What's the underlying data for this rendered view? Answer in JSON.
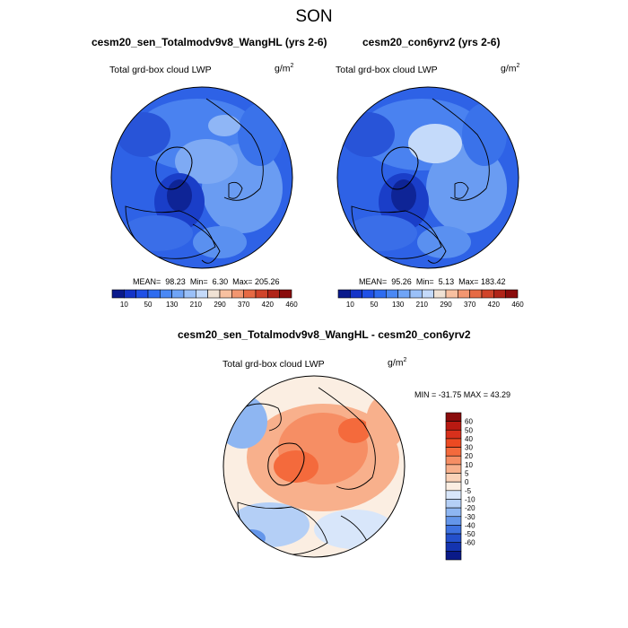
{
  "figure": {
    "season": "SON"
  },
  "panels": [
    {
      "title": "cesm20_sen_Totalmodv9v8_WangHL (yrs 2-6)",
      "variable": "Total grd-box cloud LWP",
      "units": "g/m",
      "units_sup": "2",
      "mean_label": "MEAN=",
      "mean": "98.23",
      "min_label": "Min=",
      "min": "6.30",
      "max_label": "Max=",
      "max": "205.26"
    },
    {
      "title": "cesm20_con6yrv2 (yrs 2-6)",
      "variable": "Total grd-box cloud LWP",
      "units": "g/m",
      "units_sup": "2",
      "mean_label": "MEAN=",
      "mean": "95.26",
      "min_label": "Min=",
      "min": "5.13",
      "max_label": "Max=",
      "max": "183.42"
    }
  ],
  "difference": {
    "title": "cesm20_sen_Totalmodv9v8_WangHL - cesm20_con6yrv2",
    "variable": "Total grd-box cloud LWP",
    "units": "g/m",
    "units_sup": "2",
    "minmax_text": "MIN = -31.75 MAX =  43.29"
  },
  "colorbar_abs": {
    "labels": [
      "10",
      "50",
      "130",
      "210",
      "290",
      "370",
      "420",
      "460"
    ],
    "colors": [
      "#0a1a8c",
      "#1434c8",
      "#1f50e6",
      "#2e6cf0",
      "#4a88f4",
      "#6fa4f6",
      "#9ac0f8",
      "#c4dafa",
      "#f0e2d4",
      "#f8c0a0",
      "#f29670",
      "#e66a44",
      "#d0442a",
      "#b02418",
      "#8a0c0c"
    ]
  },
  "colorbar_diff": {
    "labels": [
      "60",
      "50",
      "40",
      "30",
      "20",
      "10",
      "5",
      "0",
      "-5",
      "-10",
      "-20",
      "-30",
      "-40",
      "-50",
      "-60"
    ],
    "colors": [
      "#8a0c0c",
      "#b81a12",
      "#d8301c",
      "#ec4a22",
      "#f46a3c",
      "#f68e64",
      "#f8b08c",
      "#fad2b8",
      "#fbeee2",
      "#d8e6fa",
      "#b4cff6",
      "#8eb6f2",
      "#6496ea",
      "#3e72e0",
      "#2450cc",
      "#1434b0",
      "#0a1a88"
    ]
  },
  "colors": {
    "ocean_blue": "#2a5fe0",
    "diff_white": "#ffffff"
  }
}
